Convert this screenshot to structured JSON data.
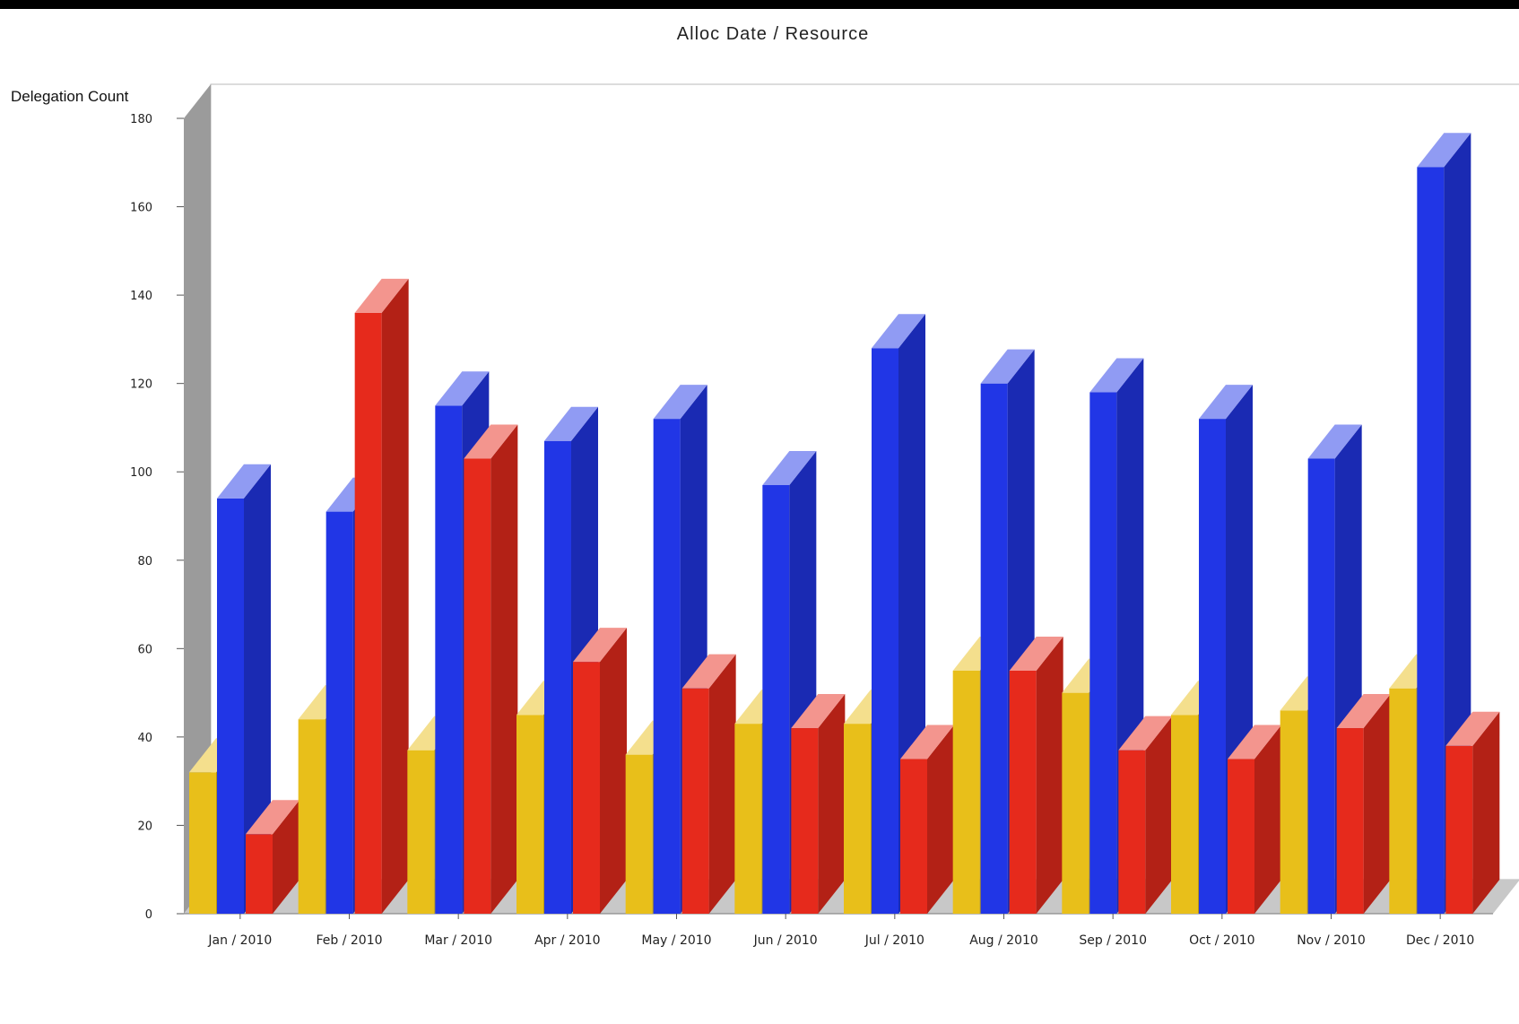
{
  "chart_data": {
    "type": "bar",
    "style": "3d-clustered",
    "title": "Alloc Date / Resource",
    "xlabel": "",
    "ylabel": "Delegation Count",
    "ylim": [
      0,
      180
    ],
    "yticks": [
      0,
      20,
      40,
      60,
      80,
      100,
      120,
      140,
      160,
      180
    ],
    "categories": [
      "Jan / 2010",
      "Feb / 2010",
      "Mar / 2010",
      "Apr / 2010",
      "May / 2010",
      "Jun / 2010",
      "Jul / 2010",
      "Aug / 2010",
      "Sep / 2010",
      "Oct / 2010",
      "Nov / 2010",
      "Dec / 2010"
    ],
    "series": [
      {
        "color": "#e8bf1a",
        "values": [
          32,
          44,
          37,
          45,
          36,
          43,
          43,
          55,
          50,
          45,
          46,
          51
        ]
      },
      {
        "color": "#2136e6",
        "values": [
          94,
          91,
          115,
          107,
          112,
          97,
          128,
          120,
          118,
          112,
          103,
          169
        ]
      },
      {
        "color": "#e62a1c",
        "values": [
          18,
          136,
          103,
          57,
          51,
          42,
          35,
          55,
          37,
          35,
          42,
          38
        ]
      }
    ],
    "grid": false,
    "legend": "none"
  }
}
